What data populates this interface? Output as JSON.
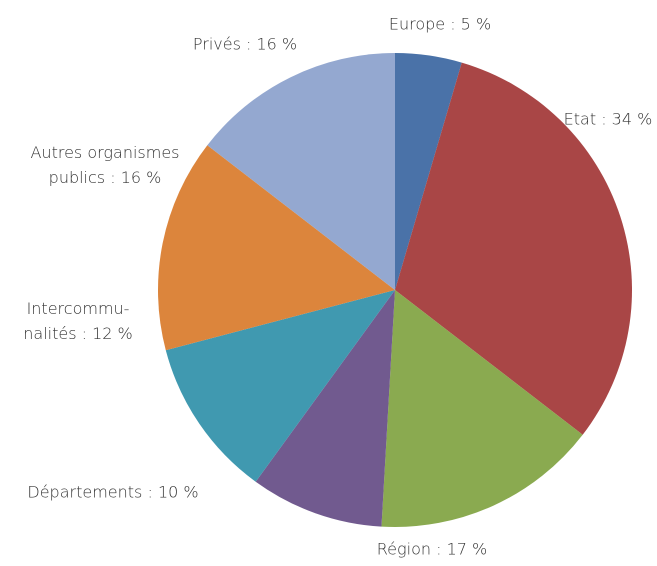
{
  "chart_data": {
    "type": "pie",
    "values": [
      5,
      34,
      17,
      10,
      12,
      16,
      16
    ],
    "value_labels": [
      "Europe : 5 %",
      "Etat : 34 %",
      "Région : 17 %",
      "Départements : 10 %",
      [
        "Intercommu-",
        "nalités : 12 %"
      ],
      [
        "Autres organismes",
        "publics : 16 %"
      ],
      "Privés : 16 %"
    ],
    "colors": [
      "#4a72a8",
      "#a94646",
      "#8aaa50",
      "#715a8f",
      "#4099b0",
      "#dc853c",
      "#94a8d0"
    ]
  }
}
